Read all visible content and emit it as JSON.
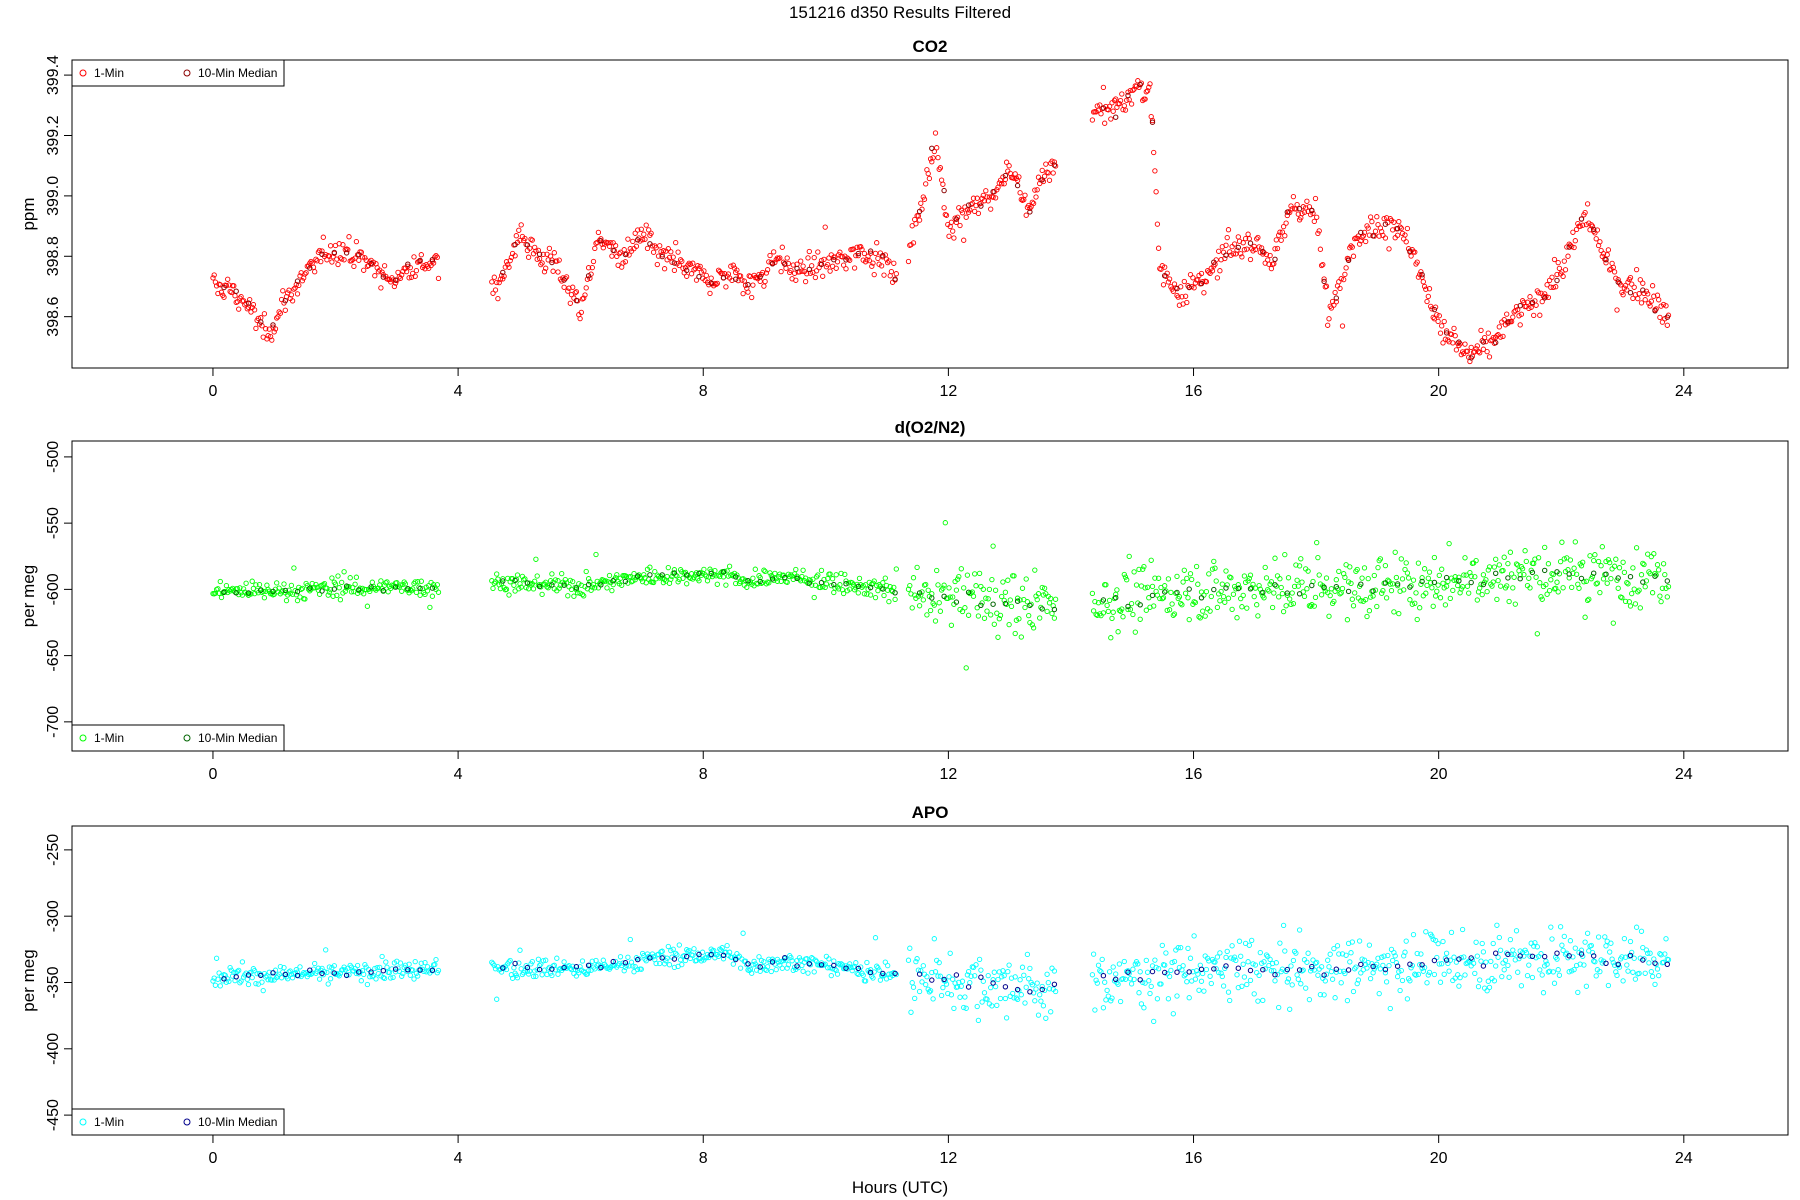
{
  "page_title": "151216   d350   Results Filtered",
  "x_axis_label": "Hours (UTC)",
  "chart_data": [
    {
      "type": "scatter",
      "title": "CO2",
      "ylabel": "ppm",
      "xlabel": "",
      "xlim": [
        -2.3,
        25.7
      ],
      "ylim": [
        398.43,
        399.45
      ],
      "xticks": [
        0,
        4,
        8,
        12,
        16,
        20,
        24
      ],
      "yticks": [
        398.6,
        398.8,
        399.0,
        399.2,
        399.4
      ],
      "ytick_labels": [
        "398.6",
        "398.8",
        "399.0",
        "399.2",
        "399.4"
      ],
      "grid": false,
      "legend_position": "top-left",
      "series": [
        {
          "name": "1-Min",
          "color": "#ff0000",
          "marker": "open-circle",
          "anchors": [
            [
              0.0,
              398.7
            ],
            [
              0.3,
              398.69
            ],
            [
              0.6,
              398.63
            ],
            [
              0.9,
              398.54
            ],
            [
              1.2,
              398.66
            ],
            [
              1.5,
              398.74
            ],
            [
              1.8,
              398.81
            ],
            [
              2.1,
              398.82
            ],
            [
              2.5,
              398.79
            ],
            [
              2.9,
              398.71
            ],
            [
              3.2,
              398.77
            ],
            [
              3.6,
              398.78
            ],
            [
              4.6,
              398.68
            ],
            [
              5.0,
              398.87
            ],
            [
              5.3,
              398.8
            ],
            [
              5.6,
              398.77
            ],
            [
              5.8,
              398.7
            ],
            [
              6.0,
              398.63
            ],
            [
              6.3,
              398.86
            ],
            [
              6.7,
              398.79
            ],
            [
              7.0,
              398.87
            ],
            [
              7.3,
              398.8
            ],
            [
              7.7,
              398.76
            ],
            [
              8.1,
              398.72
            ],
            [
              8.5,
              398.74
            ],
            [
              8.8,
              398.7
            ],
            [
              9.2,
              398.8
            ],
            [
              9.5,
              398.75
            ],
            [
              9.9,
              398.77
            ],
            [
              10.3,
              398.79
            ],
            [
              10.6,
              398.82
            ],
            [
              11.0,
              398.78
            ],
            [
              11.1,
              398.72
            ],
            [
              11.4,
              398.85
            ],
            [
              11.8,
              399.18
            ],
            [
              12.0,
              398.9
            ],
            [
              12.4,
              398.97
            ],
            [
              12.7,
              398.98
            ],
            [
              13.0,
              399.1
            ],
            [
              13.3,
              398.96
            ],
            [
              13.6,
              399.07
            ],
            [
              13.7,
              399.1
            ],
            [
              14.4,
              399.28
            ],
            [
              14.8,
              399.3
            ],
            [
              15.1,
              399.36
            ],
            [
              15.3,
              399.35
            ],
            [
              15.45,
              398.75
            ],
            [
              15.8,
              398.68
            ],
            [
              16.2,
              398.73
            ],
            [
              16.6,
              398.82
            ],
            [
              17.0,
              398.85
            ],
            [
              17.3,
              398.78
            ],
            [
              17.6,
              398.97
            ],
            [
              18.0,
              398.94
            ],
            [
              18.2,
              398.6
            ],
            [
              18.6,
              398.85
            ],
            [
              19.2,
              398.92
            ],
            [
              19.5,
              398.85
            ],
            [
              19.8,
              398.68
            ],
            [
              20.1,
              398.55
            ],
            [
              20.5,
              398.47
            ],
            [
              20.9,
              398.52
            ],
            [
              21.2,
              398.6
            ],
            [
              21.6,
              398.65
            ],
            [
              22.0,
              398.75
            ],
            [
              22.4,
              398.95
            ],
            [
              22.7,
              398.8
            ],
            [
              23.0,
              398.7
            ],
            [
              23.3,
              398.7
            ],
            [
              23.7,
              398.6
            ]
          ],
          "noise": 0.03,
          "outliers": 0.045,
          "spread": 0.12
        },
        {
          "name": "10-Min Median",
          "color": "#8b0000",
          "marker": "open-circle"
        }
      ],
      "segments": [
        [
          0.0,
          3.7
        ],
        [
          4.55,
          11.15
        ],
        [
          11.35,
          13.75
        ],
        [
          14.35,
          23.75
        ]
      ],
      "noisy_from": 11.3
    },
    {
      "type": "scatter",
      "title": "d(O2/N2)",
      "ylabel": "per meg",
      "xlabel": "",
      "xlim": [
        -2.3,
        25.7
      ],
      "ylim": [
        -722,
        -488
      ],
      "xticks": [
        0,
        4,
        8,
        12,
        16,
        20,
        24
      ],
      "yticks": [
        -700,
        -650,
        -600,
        -550,
        -500
      ],
      "ytick_labels": [
        "-700",
        "-650",
        "-600",
        "-550",
        "-500"
      ],
      "grid": false,
      "legend_position": "bottom-left",
      "series": [
        {
          "name": "1-Min",
          "color": "#00ff00",
          "marker": "open-circle",
          "anchors": [
            [
              0.0,
              -602
            ],
            [
              3.7,
              -598
            ],
            [
              4.6,
              -594
            ],
            [
              6.0,
              -598
            ],
            [
              7.0,
              -590
            ],
            [
              8.3,
              -588
            ],
            [
              8.8,
              -595
            ],
            [
              9.2,
              -590
            ],
            [
              11.1,
              -601
            ],
            [
              11.4,
              -605
            ],
            [
              12.5,
              -608
            ],
            [
              13.7,
              -612
            ],
            [
              14.4,
              -610
            ],
            [
              16.0,
              -600
            ],
            [
              18.5,
              -598
            ],
            [
              19.2,
              -598
            ],
            [
              21.5,
              -588
            ],
            [
              23.7,
              -590
            ]
          ],
          "noise": 5,
          "outliers": 15,
          "spread": 28
        },
        {
          "name": "10-Min Median",
          "color": "#006400",
          "marker": "open-circle"
        }
      ],
      "segments": [
        [
          0.0,
          3.7
        ],
        [
          4.55,
          11.15
        ],
        [
          11.35,
          13.75
        ],
        [
          14.35,
          23.75
        ]
      ],
      "noisy_from": 11.3
    },
    {
      "type": "scatter",
      "title": "APO",
      "ylabel": "per meg",
      "xlabel": "Hours (UTC)",
      "xlim": [
        -2.3,
        25.7
      ],
      "ylim": [
        -465,
        -232
      ],
      "xticks": [
        0,
        4,
        8,
        12,
        16,
        20,
        24
      ],
      "yticks": [
        -450,
        -400,
        -350,
        -300,
        -250
      ],
      "ytick_labels": [
        "-450",
        "-400",
        "-350",
        "-300",
        "-250"
      ],
      "grid": false,
      "legend_position": "bottom-left",
      "series": [
        {
          "name": "1-Min",
          "color": "#00ffff",
          "marker": "open-circle",
          "anchors": [
            [
              0.0,
              -346
            ],
            [
              3.7,
              -340
            ],
            [
              4.6,
              -338
            ],
            [
              6.0,
              -340
            ],
            [
              7.0,
              -333
            ],
            [
              8.3,
              -328
            ],
            [
              8.8,
              -338
            ],
            [
              9.2,
              -333
            ],
            [
              11.1,
              -343
            ],
            [
              11.4,
              -346
            ],
            [
              12.5,
              -350
            ],
            [
              13.7,
              -355
            ],
            [
              14.4,
              -350
            ],
            [
              16.0,
              -340
            ],
            [
              18.5,
              -340
            ],
            [
              19.2,
              -338
            ],
            [
              21.5,
              -330
            ],
            [
              23.7,
              -333
            ]
          ],
          "noise": 5,
          "outliers": 15,
          "spread": 28
        },
        {
          "name": "10-Min Median",
          "color": "#00008b",
          "marker": "open-circle"
        }
      ],
      "segments": [
        [
          0.0,
          3.7
        ],
        [
          4.55,
          11.15
        ],
        [
          11.35,
          13.75
        ],
        [
          14.35,
          23.75
        ]
      ],
      "noisy_from": 11.3
    }
  ]
}
